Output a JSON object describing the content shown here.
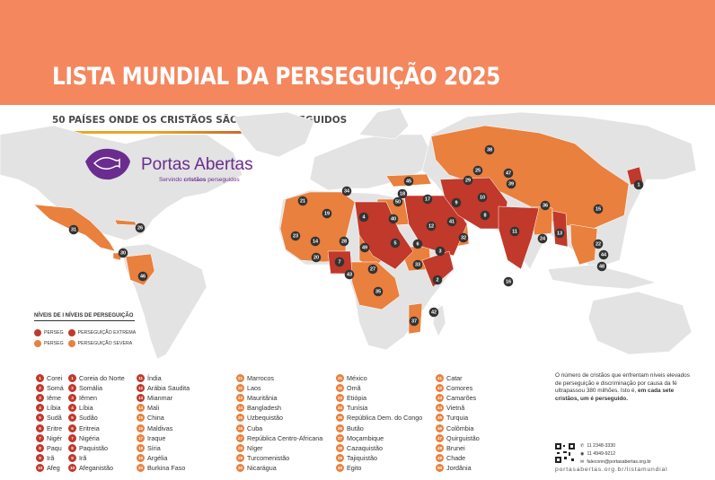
{
  "header": {
    "title": "LISTA MUNDIAL DA PERSEGUIÇÃO 2025",
    "subtitle": "50 PAÍSES ONDE OS CRISTÃOS SÃO MAIS PERSEGUIDOS"
  },
  "brand": {
    "name": "Portas Abertas",
    "tagline_pre": "Servindo ",
    "tagline_bold": "cristãos",
    "tagline_post": " perseguidos",
    "color": "#6b2c8f"
  },
  "colors": {
    "header": "#f4875e",
    "extreme": "#c0392b",
    "severe": "#e9803d",
    "land": "#e3e3e3"
  },
  "legend": {
    "title": "NÍVEIS DE I NÍVEIS DE PERSEGUIÇÃO",
    "extreme_short": "PERSEG",
    "extreme_label": "PERSEGUIÇÃO EXTREMA",
    "severe_short": "PERSEG",
    "severe_label": "PERSEGUIÇÃO SEVERA"
  },
  "map_markers": [
    {
      "rank": "1",
      "level": "extreme"
    },
    {
      "rank": "2",
      "level": "extreme"
    },
    {
      "rank": "3",
      "level": "extreme"
    },
    {
      "rank": "4",
      "level": "extreme"
    },
    {
      "rank": "5",
      "level": "extreme"
    },
    {
      "rank": "6",
      "level": "extreme"
    },
    {
      "rank": "7",
      "level": "extreme"
    },
    {
      "rank": "8",
      "level": "extreme"
    },
    {
      "rank": "9",
      "level": "extreme"
    },
    {
      "rank": "10",
      "level": "extreme"
    },
    {
      "rank": "11",
      "level": "extreme"
    },
    {
      "rank": "12",
      "level": "extreme"
    },
    {
      "rank": "13",
      "level": "extreme"
    },
    {
      "rank": "14",
      "level": "severe"
    },
    {
      "rank": "15",
      "level": "severe"
    },
    {
      "rank": "16",
      "level": "severe"
    },
    {
      "rank": "17",
      "level": "severe"
    },
    {
      "rank": "18",
      "level": "severe"
    },
    {
      "rank": "19",
      "level": "severe"
    },
    {
      "rank": "20",
      "level": "severe"
    },
    {
      "rank": "21",
      "level": "severe"
    },
    {
      "rank": "22",
      "level": "severe"
    },
    {
      "rank": "23",
      "level": "severe"
    },
    {
      "rank": "24",
      "level": "severe"
    },
    {
      "rank": "25",
      "level": "severe"
    },
    {
      "rank": "26",
      "level": "severe"
    },
    {
      "rank": "27",
      "level": "severe"
    },
    {
      "rank": "28",
      "level": "severe"
    },
    {
      "rank": "29",
      "level": "severe"
    },
    {
      "rank": "30",
      "level": "severe"
    },
    {
      "rank": "31",
      "level": "severe"
    },
    {
      "rank": "32",
      "level": "severe"
    },
    {
      "rank": "33",
      "level": "severe"
    },
    {
      "rank": "34",
      "level": "severe"
    },
    {
      "rank": "35",
      "level": "severe"
    },
    {
      "rank": "36",
      "level": "severe"
    },
    {
      "rank": "37",
      "level": "severe"
    },
    {
      "rank": "38",
      "level": "severe"
    },
    {
      "rank": "39",
      "level": "severe"
    },
    {
      "rank": "40",
      "level": "severe"
    },
    {
      "rank": "41",
      "level": "severe"
    },
    {
      "rank": "42",
      "level": "severe"
    },
    {
      "rank": "43",
      "level": "severe"
    },
    {
      "rank": "44",
      "level": "severe"
    },
    {
      "rank": "45",
      "level": "severe"
    },
    {
      "rank": "46",
      "level": "severe"
    },
    {
      "rank": "47",
      "level": "severe"
    },
    {
      "rank": "48",
      "level": "severe"
    },
    {
      "rank": "49",
      "level": "severe"
    },
    {
      "rank": "50",
      "level": "severe"
    }
  ],
  "country_list": {
    "col1": [
      {
        "rank": "1",
        "name": "Corei"
      },
      {
        "rank": "2",
        "name": "Somá"
      },
      {
        "rank": "3",
        "name": "Iême"
      },
      {
        "rank": "4",
        "name": "Líbia"
      },
      {
        "rank": "5",
        "name": "Sudã"
      },
      {
        "rank": "6",
        "name": "Eritre"
      },
      {
        "rank": "7",
        "name": "Nigér"
      },
      {
        "rank": "8",
        "name": "Paqu"
      },
      {
        "rank": "9",
        "name": "Irã"
      },
      {
        "rank": "10",
        "name": "Afeg"
      }
    ],
    "col2": [
      {
        "rank": "1",
        "name": "Coreia do Norte"
      },
      {
        "rank": "2",
        "name": "Somália"
      },
      {
        "rank": "3",
        "name": "Iêmen"
      },
      {
        "rank": "4",
        "name": "Líbia"
      },
      {
        "rank": "5",
        "name": "Sudão"
      },
      {
        "rank": "6",
        "name": "Eritreia"
      },
      {
        "rank": "7",
        "name": "Nigéria"
      },
      {
        "rank": "8",
        "name": "Paquistão"
      },
      {
        "rank": "9",
        "name": "Irã"
      },
      {
        "rank": "10",
        "name": "Afeganistão"
      }
    ],
    "col3": [
      {
        "rank": "11",
        "name": "Índia"
      },
      {
        "rank": "12",
        "name": "Arábia Saudita"
      },
      {
        "rank": "13",
        "name": "Mianmar"
      },
      {
        "rank": "14",
        "name": "Mali"
      },
      {
        "rank": "15",
        "name": "China"
      },
      {
        "rank": "16",
        "name": "Maldivas"
      },
      {
        "rank": "17",
        "name": "Iraque"
      },
      {
        "rank": "18",
        "name": "Síria"
      },
      {
        "rank": "19",
        "name": "Argélia"
      },
      {
        "rank": "20",
        "name": "Burkina Faso"
      }
    ],
    "col4": [
      {
        "rank": "21",
        "name": "Marrocos"
      },
      {
        "rank": "22",
        "name": "Laos"
      },
      {
        "rank": "23",
        "name": "Mauritânia"
      },
      {
        "rank": "24",
        "name": "Bangladesh"
      },
      {
        "rank": "25",
        "name": "Uzbequistão"
      },
      {
        "rank": "26",
        "name": "Cuba"
      },
      {
        "rank": "27",
        "name": "República Centro-Africana"
      },
      {
        "rank": "28",
        "name": "Níger"
      },
      {
        "rank": "29",
        "name": "Turcomenistão"
      },
      {
        "rank": "30",
        "name": "Nicarágua"
      }
    ],
    "col5": [
      {
        "rank": "31",
        "name": "México"
      },
      {
        "rank": "32",
        "name": "Omã"
      },
      {
        "rank": "33",
        "name": "Etiópia"
      },
      {
        "rank": "34",
        "name": "Tunísia"
      },
      {
        "rank": "35",
        "name": "República Dem. do Congo"
      },
      {
        "rank": "36",
        "name": "Butão"
      },
      {
        "rank": "37",
        "name": "Moçambique"
      },
      {
        "rank": "38",
        "name": "Cazaquistão"
      },
      {
        "rank": "39",
        "name": "Tajiquistão"
      },
      {
        "rank": "40",
        "name": "Egito"
      }
    ],
    "col6": [
      {
        "rank": "41",
        "name": "Catar"
      },
      {
        "rank": "42",
        "name": "Comores"
      },
      {
        "rank": "43",
        "name": "Camarões"
      },
      {
        "rank": "44",
        "name": "Vietnã"
      },
      {
        "rank": "45",
        "name": "Turquia"
      },
      {
        "rank": "46",
        "name": "Colômbia"
      },
      {
        "rank": "47",
        "name": "Quirguistão"
      },
      {
        "rank": "48",
        "name": "Brunei"
      },
      {
        "rank": "49",
        "name": "Chade"
      },
      {
        "rank": "50",
        "name": "Jordânia"
      }
    ]
  },
  "info": {
    "text": "O número de cristãos que enfrentam níveis elevados de perseguição e discriminação por causa da fé ultrapassou 380 milhões. Isto é, ",
    "bold": "em cada sete cristãos, um é perseguido."
  },
  "contact": {
    "phone": "11 2348-3330",
    "whatsapp": "11 4949-9212",
    "email": "faleconn@portasabertas.org.br",
    "website": "portasabertas.org.br/listamundial"
  }
}
